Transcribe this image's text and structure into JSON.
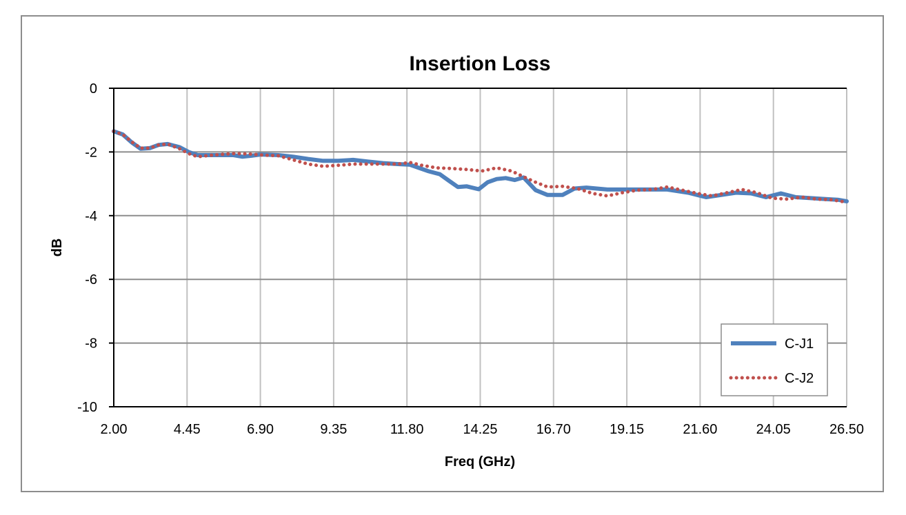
{
  "chart_data": {
    "type": "line",
    "title": "Insertion Loss",
    "xlabel": "Freq (GHz)",
    "ylabel": "dB",
    "xlim": [
      2.0,
      26.5
    ],
    "ylim": [
      -10,
      0
    ],
    "x_ticks": [
      "2.00",
      "4.45",
      "6.90",
      "9.35",
      "11.80",
      "14.25",
      "16.70",
      "19.15",
      "21.60",
      "24.05",
      "26.50"
    ],
    "y_ticks": [
      "0",
      "-2",
      "-4",
      "-6",
      "-8",
      "-10"
    ],
    "grid": true,
    "legend_position": "bottom-right",
    "series": [
      {
        "name": "C-J1",
        "color": "#4f81bd",
        "style": "solid",
        "points": [
          [
            2.0,
            -1.35
          ],
          [
            2.3,
            -1.45
          ],
          [
            2.6,
            -1.7
          ],
          [
            2.9,
            -1.9
          ],
          [
            3.2,
            -1.88
          ],
          [
            3.5,
            -1.78
          ],
          [
            3.8,
            -1.75
          ],
          [
            4.2,
            -1.85
          ],
          [
            4.5,
            -2.0
          ],
          [
            4.8,
            -2.1
          ],
          [
            5.3,
            -2.1
          ],
          [
            6.0,
            -2.1
          ],
          [
            6.3,
            -2.15
          ],
          [
            6.6,
            -2.12
          ],
          [
            6.9,
            -2.08
          ],
          [
            7.5,
            -2.1
          ],
          [
            8.0,
            -2.15
          ],
          [
            8.5,
            -2.22
          ],
          [
            9.0,
            -2.28
          ],
          [
            9.5,
            -2.28
          ],
          [
            10.0,
            -2.25
          ],
          [
            10.5,
            -2.3
          ],
          [
            11.0,
            -2.35
          ],
          [
            11.5,
            -2.38
          ],
          [
            11.9,
            -2.4
          ],
          [
            12.2,
            -2.5
          ],
          [
            12.5,
            -2.6
          ],
          [
            12.9,
            -2.7
          ],
          [
            13.2,
            -2.9
          ],
          [
            13.5,
            -3.1
          ],
          [
            13.8,
            -3.08
          ],
          [
            14.2,
            -3.17
          ],
          [
            14.5,
            -2.95
          ],
          [
            14.8,
            -2.85
          ],
          [
            15.1,
            -2.82
          ],
          [
            15.4,
            -2.88
          ],
          [
            15.7,
            -2.8
          ],
          [
            16.1,
            -3.2
          ],
          [
            16.5,
            -3.35
          ],
          [
            17.0,
            -3.35
          ],
          [
            17.4,
            -3.15
          ],
          [
            17.8,
            -3.12
          ],
          [
            18.5,
            -3.18
          ],
          [
            19.5,
            -3.18
          ],
          [
            20.5,
            -3.18
          ],
          [
            21.2,
            -3.28
          ],
          [
            21.8,
            -3.42
          ],
          [
            22.3,
            -3.35
          ],
          [
            22.8,
            -3.28
          ],
          [
            23.3,
            -3.3
          ],
          [
            23.8,
            -3.42
          ],
          [
            24.3,
            -3.3
          ],
          [
            24.8,
            -3.42
          ],
          [
            25.3,
            -3.45
          ],
          [
            25.8,
            -3.48
          ],
          [
            26.2,
            -3.5
          ],
          [
            26.5,
            -3.55
          ]
        ]
      },
      {
        "name": "C-J2",
        "color": "#c0504d",
        "style": "dotted",
        "points": [
          [
            2.0,
            -1.35
          ],
          [
            2.3,
            -1.45
          ],
          [
            2.6,
            -1.68
          ],
          [
            2.9,
            -1.88
          ],
          [
            3.2,
            -1.88
          ],
          [
            3.5,
            -1.78
          ],
          [
            3.8,
            -1.75
          ],
          [
            4.2,
            -1.9
          ],
          [
            4.5,
            -2.05
          ],
          [
            4.8,
            -2.15
          ],
          [
            5.3,
            -2.1
          ],
          [
            6.0,
            -2.05
          ],
          [
            6.5,
            -2.06
          ],
          [
            7.0,
            -2.1
          ],
          [
            7.5,
            -2.12
          ],
          [
            8.0,
            -2.25
          ],
          [
            8.5,
            -2.38
          ],
          [
            9.0,
            -2.45
          ],
          [
            9.5,
            -2.42
          ],
          [
            10.0,
            -2.38
          ],
          [
            10.5,
            -2.38
          ],
          [
            11.0,
            -2.38
          ],
          [
            11.5,
            -2.38
          ],
          [
            11.9,
            -2.33
          ],
          [
            12.3,
            -2.42
          ],
          [
            12.8,
            -2.5
          ],
          [
            13.3,
            -2.52
          ],
          [
            13.8,
            -2.55
          ],
          [
            14.3,
            -2.6
          ],
          [
            14.8,
            -2.5
          ],
          [
            15.3,
            -2.6
          ],
          [
            15.7,
            -2.78
          ],
          [
            16.1,
            -2.95
          ],
          [
            16.5,
            -3.1
          ],
          [
            17.0,
            -3.08
          ],
          [
            17.5,
            -3.15
          ],
          [
            18.0,
            -3.3
          ],
          [
            18.5,
            -3.38
          ],
          [
            19.0,
            -3.28
          ],
          [
            19.5,
            -3.2
          ],
          [
            20.0,
            -3.18
          ],
          [
            20.5,
            -3.1
          ],
          [
            21.0,
            -3.2
          ],
          [
            21.5,
            -3.3
          ],
          [
            22.0,
            -3.38
          ],
          [
            22.5,
            -3.28
          ],
          [
            23.0,
            -3.18
          ],
          [
            23.5,
            -3.28
          ],
          [
            24.0,
            -3.45
          ],
          [
            24.5,
            -3.48
          ],
          [
            25.0,
            -3.42
          ],
          [
            25.5,
            -3.48
          ],
          [
            26.0,
            -3.5
          ],
          [
            26.5,
            -3.58
          ]
        ]
      }
    ]
  }
}
